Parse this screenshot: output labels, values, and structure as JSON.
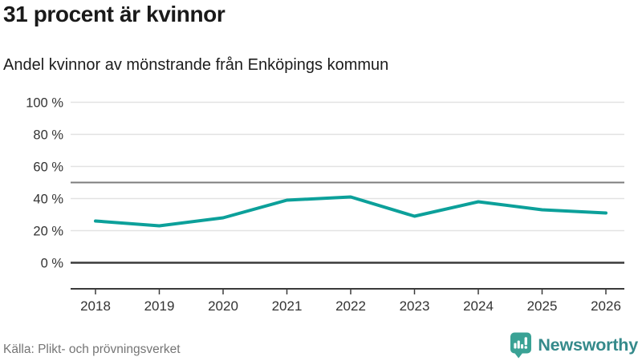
{
  "header": {
    "title": "31 procent är kvinnor",
    "subtitle": "Andel kvinnor av mönstrande från Enköpings kommun"
  },
  "chart_data": {
    "type": "line",
    "title": "Andel kvinnor av mönstrande från Enköpings kommun",
    "x": [
      "2018",
      "2019",
      "2020",
      "2021",
      "2022",
      "2023",
      "2024",
      "2025",
      "2026"
    ],
    "series": [
      {
        "name": "Andel kvinnor",
        "values": [
          26,
          23,
          28,
          39,
          41,
          29,
          38,
          33,
          31
        ],
        "color": "#0ca09a"
      }
    ],
    "ylim": [
      0,
      100
    ],
    "yticks": [
      0,
      20,
      40,
      60,
      80,
      100
    ],
    "ytick_suffix": " %",
    "reference_line_y": 50,
    "grid": "horizontal",
    "legend": false
  },
  "footer": {
    "source": "Källa: Plikt- och prövningsverket",
    "brand": "Newsworthy"
  },
  "colors": {
    "line": "#0ca09a",
    "grid_light": "#e2e2e2",
    "grid_reference": "#7d7d7d",
    "axis_dark": "#3a3a3a",
    "text_axis": "#333333",
    "text_source": "#757575",
    "brand_icon": "#3aa295",
    "brand_text": "#358a8b"
  }
}
